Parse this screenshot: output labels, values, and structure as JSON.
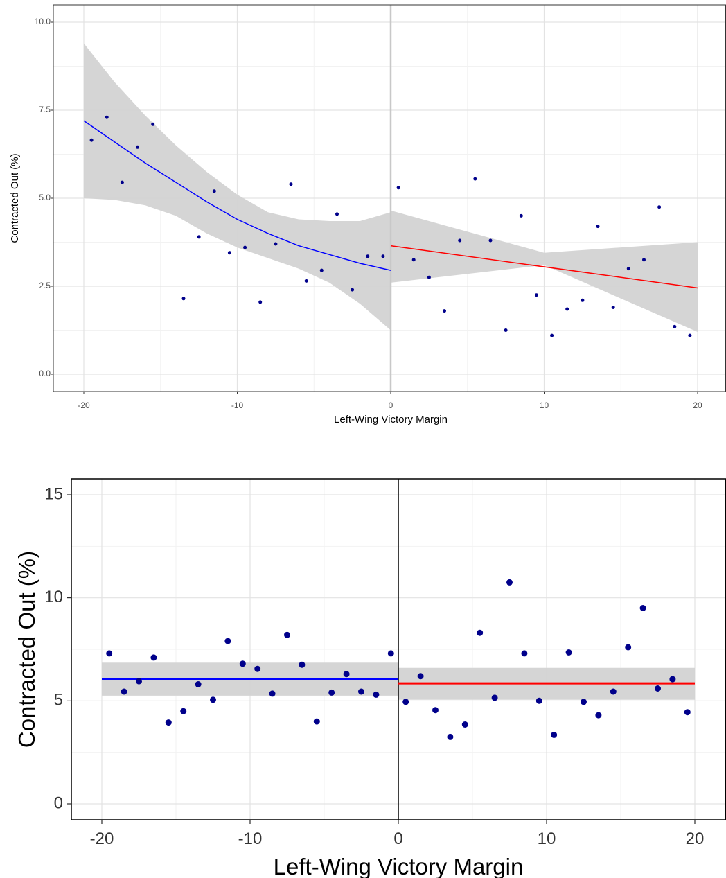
{
  "chart_data": [
    {
      "type": "scatter",
      "xlabel": "Left-Wing Victory Margin",
      "ylabel": "Contracted Out (%)",
      "xlim": [
        -20,
        20
      ],
      "ylim": [
        0,
        10
      ],
      "xticks": [
        -20,
        -10,
        0,
        10,
        20
      ],
      "yticks": [
        0,
        2.5,
        5,
        7.5,
        10
      ],
      "xtick_labels": [
        "-20",
        "-10",
        "0",
        "10",
        "20"
      ],
      "ytick_labels": [
        "0.0",
        "2.5",
        "5.0",
        "7.5",
        "10.0"
      ],
      "grid": true,
      "cutoff": 0,
      "points": [
        [
          -19.5,
          6.65
        ],
        [
          -18.5,
          7.3
        ],
        [
          -17.5,
          5.45
        ],
        [
          -16.5,
          6.45
        ],
        [
          -15.5,
          7.1
        ],
        [
          -13.5,
          2.15
        ],
        [
          -12.5,
          3.9
        ],
        [
          -11.5,
          5.2
        ],
        [
          -10.5,
          3.45
        ],
        [
          -9.5,
          3.6
        ],
        [
          -8.5,
          2.05
        ],
        [
          -7.5,
          3.7
        ],
        [
          -6.5,
          5.4
        ],
        [
          -5.5,
          2.65
        ],
        [
          -4.5,
          2.95
        ],
        [
          -3.5,
          4.55
        ],
        [
          -2.5,
          2.4
        ],
        [
          -1.5,
          3.35
        ],
        [
          -0.5,
          3.35
        ],
        [
          0.5,
          5.3
        ],
        [
          1.5,
          3.25
        ],
        [
          2.5,
          2.75
        ],
        [
          3.5,
          1.8
        ],
        [
          4.5,
          3.8
        ],
        [
          5.5,
          5.55
        ],
        [
          6.5,
          3.8
        ],
        [
          7.5,
          1.25
        ],
        [
          8.5,
          4.5
        ],
        [
          9.5,
          2.25
        ],
        [
          10.5,
          1.1
        ],
        [
          11.5,
          1.85
        ],
        [
          12.5,
          2.1
        ],
        [
          13.5,
          4.2
        ],
        [
          14.5,
          1.9
        ],
        [
          15.5,
          3.0
        ],
        [
          16.5,
          3.25
        ],
        [
          17.5,
          4.75
        ],
        [
          18.5,
          1.35
        ],
        [
          19.5,
          1.1
        ]
      ],
      "series": [
        {
          "color": "#0000ff",
          "x": [
            -20,
            -18,
            -16,
            -14,
            -12,
            -10,
            -8,
            -6,
            -4,
            -2,
            0
          ],
          "y": [
            7.2,
            6.6,
            6.0,
            5.45,
            4.9,
            4.4,
            4.0,
            3.65,
            3.4,
            3.15,
            2.95
          ],
          "ci_low": [
            5.0,
            4.95,
            4.8,
            4.5,
            4.0,
            3.6,
            3.3,
            3.0,
            2.6,
            2.0,
            1.25
          ],
          "ci_high": [
            9.4,
            8.3,
            7.35,
            6.5,
            5.75,
            5.1,
            4.6,
            4.4,
            4.35,
            4.35,
            4.6
          ]
        },
        {
          "color": "#ff0000",
          "x": [
            0,
            20
          ],
          "y": [
            3.65,
            2.45
          ],
          "ci_low": [
            2.6,
            1.2
          ],
          "ci_high": [
            4.65,
            3.75
          ],
          "ci_mid": [
            3.1,
            3.5
          ]
        }
      ]
    },
    {
      "type": "scatter",
      "xlabel": "Left-Wing Victory Margin",
      "ylabel": "Contracted Out (%)",
      "xlim": [
        -20,
        20
      ],
      "ylim": [
        0,
        15
      ],
      "xticks": [
        -20,
        -10,
        0,
        10,
        20
      ],
      "yticks": [
        0,
        5,
        10,
        15
      ],
      "xtick_labels": [
        "-20",
        "-10",
        "0",
        "10",
        "20"
      ],
      "ytick_labels": [
        "0",
        "5",
        "10",
        "15"
      ],
      "grid": true,
      "cutoff": 0,
      "points": [
        [
          -19.5,
          7.3
        ],
        [
          -18.5,
          5.45
        ],
        [
          -17.5,
          5.95
        ],
        [
          -16.5,
          7.1
        ],
        [
          -15.5,
          3.95
        ],
        [
          -14.5,
          4.5
        ],
        [
          -13.5,
          5.8
        ],
        [
          -12.5,
          5.05
        ],
        [
          -11.5,
          7.9
        ],
        [
          -10.5,
          6.8
        ],
        [
          -9.5,
          6.55
        ],
        [
          -8.5,
          5.35
        ],
        [
          -7.5,
          8.2
        ],
        [
          -6.5,
          6.75
        ],
        [
          -5.5,
          4.0
        ],
        [
          -4.5,
          5.4
        ],
        [
          -3.5,
          6.3
        ],
        [
          -2.5,
          5.45
        ],
        [
          -1.5,
          5.3
        ],
        [
          -0.5,
          7.3
        ],
        [
          0.5,
          4.95
        ],
        [
          1.5,
          6.2
        ],
        [
          2.5,
          4.55
        ],
        [
          3.5,
          3.25
        ],
        [
          4.5,
          3.85
        ],
        [
          5.5,
          8.3
        ],
        [
          6.5,
          5.15
        ],
        [
          7.5,
          10.75
        ],
        [
          8.5,
          7.3
        ],
        [
          9.5,
          5.0
        ],
        [
          10.5,
          3.35
        ],
        [
          11.5,
          7.35
        ],
        [
          12.5,
          4.95
        ],
        [
          13.5,
          4.3
        ],
        [
          14.5,
          5.45
        ],
        [
          15.5,
          7.6
        ],
        [
          16.5,
          9.5
        ],
        [
          17.5,
          5.6
        ],
        [
          18.5,
          6.05
        ],
        [
          19.5,
          4.45
        ]
      ],
      "series": [
        {
          "color": "#0000ff",
          "x": [
            -20,
            0
          ],
          "y": [
            6.07,
            6.07
          ],
          "ci_low": [
            5.25,
            5.25
          ],
          "ci_high": [
            6.85,
            6.85
          ]
        },
        {
          "color": "#ff0000",
          "x": [
            0,
            20
          ],
          "y": [
            5.85,
            5.85
          ],
          "ci_low": [
            5.05,
            5.05
          ],
          "ci_high": [
            6.6,
            6.6
          ]
        }
      ]
    }
  ]
}
